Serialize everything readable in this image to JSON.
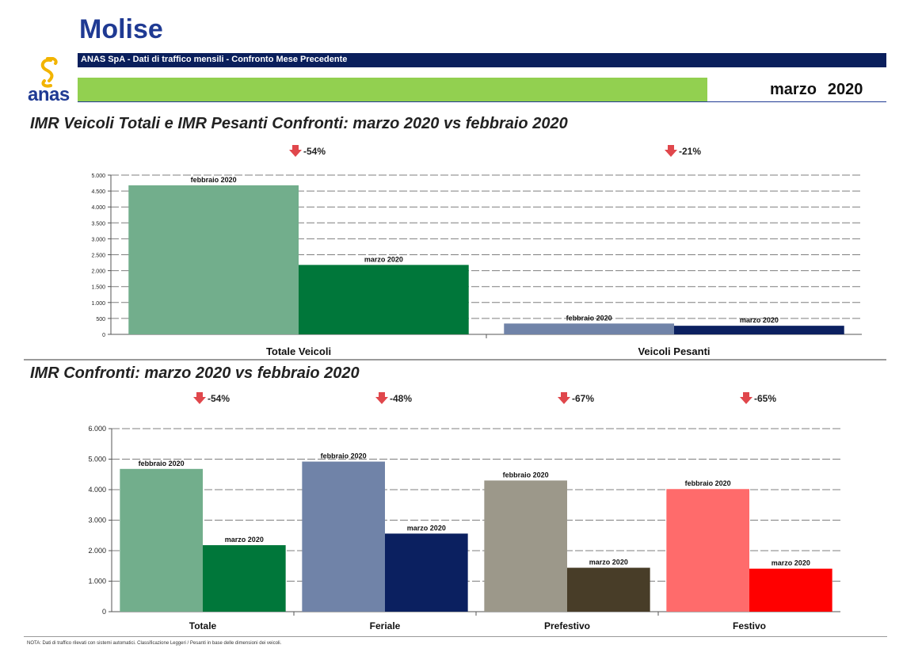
{
  "header": {
    "region": "Molise",
    "banner": "ANAS SpA - Dati di traffico mensili - Confronto Mese Precedente",
    "month": "marzo",
    "year": "2020",
    "logo_text": "anas"
  },
  "colors": {
    "title": "#1f3a93",
    "banner": "#0a1f5c",
    "accent_green": "#92d050",
    "arrow": "#e0474c"
  },
  "chart1_title": "IMR Veicoli Totali e IMR Pesanti Confronti: marzo 2020 vs febbraio 2020",
  "chart2_title": "IMR Confronti: marzo 2020 vs febbraio 2020",
  "note": "NOTA: Dati di traffico rilevati con sistemi automatici. Classificazione Leggeri / Pesanti in base delle dimensioni dei veicoli.",
  "chart_data": [
    {
      "type": "bar",
      "title": "IMR Veicoli Totali e IMR Pesanti Confronti: marzo 2020 vs febbraio 2020",
      "categories": [
        "Totale Veicoli",
        "Veicoli Pesanti"
      ],
      "series": [
        {
          "name": "febbraio 2020",
          "values": [
            4680,
            340
          ],
          "colors": [
            "#72ae8c",
            "#7083a8"
          ]
        },
        {
          "name": "marzo 2020",
          "values": [
            2180,
            270
          ],
          "colors": [
            "#00773a",
            "#0b2060"
          ]
        }
      ],
      "changes": [
        "-54%",
        "-21%"
      ],
      "ylim": [
        0,
        5000
      ],
      "yticks": [
        0,
        500,
        1000,
        1500,
        2000,
        2500,
        3000,
        3500,
        4000,
        4500,
        5000
      ],
      "ytick_labels": [
        "0",
        "500",
        "1.000",
        "1.500",
        "2.000",
        "2.500",
        "3.000",
        "3.500",
        "4.000",
        "4.500",
        "5.000"
      ],
      "grid": true
    },
    {
      "type": "bar",
      "title": "IMR Confronti: marzo 2020 vs febbraio 2020",
      "categories": [
        "Totale",
        "Feriale",
        "Prefestivo",
        "Festivo"
      ],
      "series": [
        {
          "name": "febbraio 2020",
          "values": [
            4680,
            4920,
            4300,
            4020
          ],
          "colors": [
            "#72ae8c",
            "#7083a8",
            "#9c988a",
            "#ff6b6b"
          ]
        },
        {
          "name": "marzo 2020",
          "values": [
            2180,
            2560,
            1440,
            1410
          ],
          "colors": [
            "#00773a",
            "#0b2060",
            "#483d28",
            "#ff0000"
          ]
        }
      ],
      "changes": [
        "-54%",
        "-48%",
        "-67%",
        "-65%"
      ],
      "ylim": [
        0,
        6000
      ],
      "yticks": [
        0,
        1000,
        2000,
        3000,
        4000,
        5000,
        6000
      ],
      "ytick_labels": [
        "0",
        "1.000",
        "2.000",
        "3.000",
        "4.000",
        "5.000",
        "6.000"
      ],
      "grid": true
    }
  ]
}
